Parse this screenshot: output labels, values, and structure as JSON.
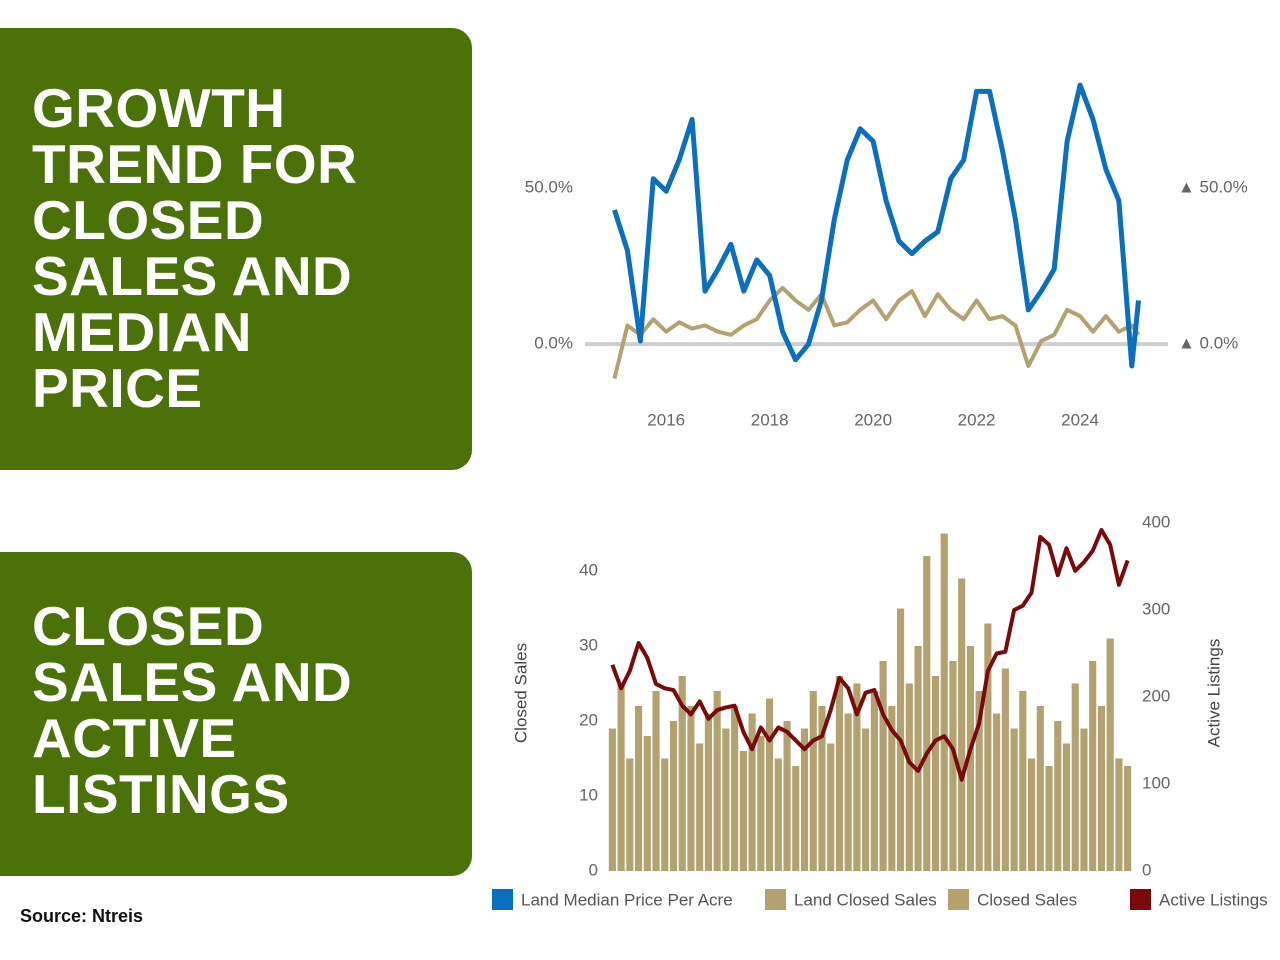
{
  "source": "Source: Ntreis",
  "chart_data": [
    {
      "type": "line",
      "title": "GROWTH\nTREND FOR\nCLOSED\nSALES AND\nMEDIAN\nPRICE",
      "x": [
        2015.0,
        2015.25,
        2015.5,
        2015.75,
        2016.0,
        2016.25,
        2016.5,
        2016.75,
        2017.0,
        2017.25,
        2017.5,
        2017.75,
        2018.0,
        2018.25,
        2018.5,
        2018.75,
        2019.0,
        2019.25,
        2019.5,
        2019.75,
        2020.0,
        2020.25,
        2020.5,
        2020.75,
        2021.0,
        2021.25,
        2021.5,
        2021.75,
        2022.0,
        2022.25,
        2022.5,
        2022.75,
        2023.0,
        2023.25,
        2023.5,
        2023.75,
        2024.0,
        2024.25,
        2024.5,
        2024.75,
        2025.0,
        2025.13
      ],
      "series": [
        {
          "name": "Land Median Price Per Acre",
          "color": "#0a6fbf",
          "values": [
            43,
            30,
            1,
            53,
            49,
            59,
            72,
            17,
            24,
            32,
            17,
            27,
            22,
            4,
            -5,
            0,
            14,
            40,
            59,
            69,
            65,
            46,
            33,
            29,
            33,
            36,
            53,
            59,
            81,
            81,
            62,
            40,
            11,
            17,
            24,
            65,
            83,
            72,
            56,
            46,
            -7,
            14
          ]
        },
        {
          "name": "Land Closed Sales",
          "color": "#b3a170",
          "values": [
            -11,
            6,
            3,
            8,
            4,
            7,
            5,
            6,
            4,
            3,
            6,
            8,
            14,
            18,
            14,
            11,
            16,
            6,
            7,
            11,
            14,
            8,
            14,
            17,
            9,
            16,
            11,
            8,
            14,
            8,
            9,
            6,
            -7,
            1,
            3,
            11,
            9,
            4,
            9,
            4,
            6,
            3
          ]
        }
      ],
      "xlim": [
        2014.43,
        2025.7
      ],
      "xticks": [
        2016,
        2018,
        2020,
        2022,
        2024
      ],
      "ylim": [
        -15,
        92
      ],
      "yticks": [
        {
          "value": 50,
          "label": "50.0%"
        },
        {
          "value": 0,
          "label": "0.0%"
        }
      ],
      "y2lim": [
        -15,
        92
      ],
      "y2ticks": [
        {
          "value": 50,
          "label": "▲ 50.0%"
        },
        {
          "value": 0,
          "label": "▲ 0.0%"
        }
      ],
      "zero_line": true,
      "grid": false
    },
    {
      "type": "bar",
      "title": "CLOSED\nSALES AND\nACTIVE\nLISTINGS",
      "categories": [
        null,
        null,
        null,
        null,
        null,
        null,
        null,
        null,
        null,
        null,
        null,
        null,
        null,
        null,
        null,
        null,
        null,
        null,
        null,
        null,
        null,
        null,
        null,
        null,
        null,
        null,
        null,
        null,
        null,
        null,
        null,
        null,
        null,
        null,
        null,
        null,
        null,
        null,
        null,
        null,
        null,
        null,
        null,
        null,
        null,
        null,
        null,
        null,
        null,
        null,
        null,
        null,
        null,
        null,
        null,
        null,
        null,
        null,
        null,
        null
      ],
      "series": [
        {
          "name": "Closed Sales",
          "color": "#b3a170",
          "type": "bar",
          "values": [
            19,
            25,
            15,
            22,
            18,
            24,
            15,
            20,
            26,
            22,
            17,
            21,
            24,
            19,
            22,
            16,
            21,
            18,
            23,
            15,
            20,
            14,
            19,
            24,
            22,
            17,
            26,
            21,
            25,
            19,
            24,
            28,
            22,
            35,
            25,
            30,
            42,
            26,
            45,
            28,
            39,
            30,
            24,
            33,
            21,
            27,
            19,
            24,
            15,
            22,
            14,
            20,
            17,
            25,
            19,
            28,
            22,
            31,
            15,
            14
          ]
        },
        {
          "name": "Active Listings",
          "color": "#7a0a0a",
          "type": "line",
          "axis": "y2",
          "values": [
            237,
            210,
            230,
            262,
            245,
            215,
            210,
            208,
            190,
            180,
            195,
            175,
            185,
            188,
            190,
            160,
            140,
            165,
            150,
            165,
            160,
            150,
            140,
            150,
            155,
            185,
            222,
            210,
            180,
            205,
            208,
            180,
            162,
            150,
            125,
            115,
            135,
            150,
            155,
            140,
            105,
            140,
            170,
            230,
            250,
            252,
            300,
            305,
            320,
            384,
            375,
            340,
            371,
            345,
            355,
            368,
            392,
            375,
            329,
            357
          ]
        }
      ],
      "y_label": "Closed Sales",
      "y2_label": "Active Listings",
      "ylim": [
        0,
        46.4
      ],
      "yticks": [
        0,
        10,
        20,
        30,
        40
      ],
      "y2lim": [
        0,
        400
      ],
      "y2ticks": [
        0,
        100,
        200,
        300,
        400
      ],
      "grid": false
    }
  ]
}
